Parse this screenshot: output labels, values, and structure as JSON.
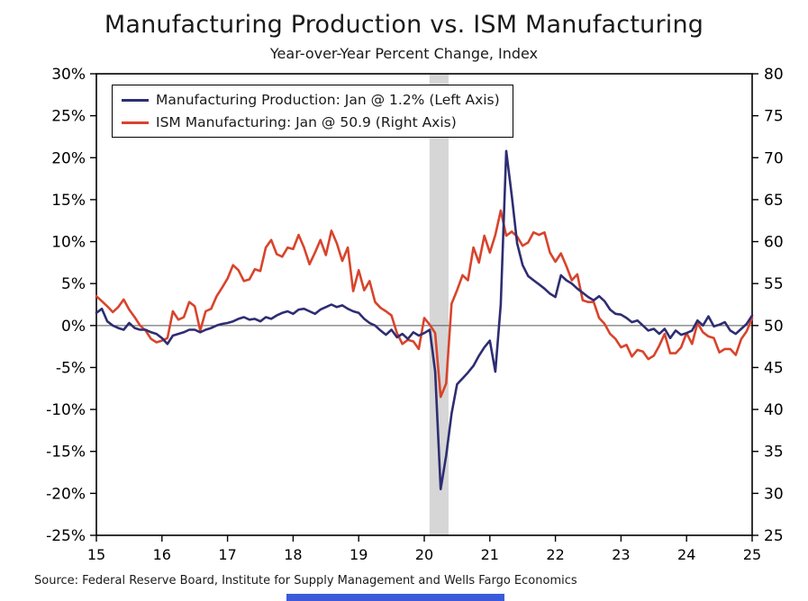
{
  "title": "Manufacturing Production vs. ISM Manufacturing",
  "subtitle": "Year-over-Year Percent Change, Index",
  "source": "Source: Federal Reserve Board, Institute for Supply Management and Wells Fargo Economics",
  "colors": {
    "production_line": "#2e2d72",
    "ism_line": "#d8442c",
    "recession_band": "#d6d6d6",
    "axis": "#000000",
    "zero_line": "#555555",
    "bottom_bar": "#3b5bdb"
  },
  "chart_data": {
    "type": "line",
    "title": "Manufacturing Production vs. ISM Manufacturing",
    "subtitle": "Year-over-Year Percent Change, Index",
    "x_axis": {
      "min": 2015,
      "max": 2025,
      "tick_values": [
        2015,
        2016,
        2017,
        2018,
        2019,
        2020,
        2021,
        2022,
        2023,
        2024,
        2025
      ],
      "tick_labels": [
        "15",
        "16",
        "17",
        "18",
        "19",
        "20",
        "21",
        "22",
        "23",
        "24",
        "25"
      ]
    },
    "left_axis": {
      "min": -25,
      "max": 30,
      "tick_values": [
        30,
        25,
        20,
        15,
        10,
        5,
        0,
        -5,
        -10,
        -15,
        -20,
        -25
      ],
      "tick_labels": [
        "30%",
        "25%",
        "20%",
        "15%",
        "10%",
        "5%",
        "0%",
        "-5%",
        "-10%",
        "-15%",
        "-20%",
        "-25%"
      ]
    },
    "right_axis": {
      "min": 25,
      "max": 80,
      "tick_values": [
        80,
        75,
        70,
        65,
        60,
        55,
        50,
        45,
        40,
        35,
        30,
        25
      ],
      "tick_labels": [
        "80",
        "75",
        "70",
        "65",
        "60",
        "55",
        "50",
        "45",
        "40",
        "35",
        "30",
        "25"
      ]
    },
    "recession_band": {
      "x0": 2020.08,
      "x1": 2020.37
    },
    "frequency": "monthly",
    "start": "2015-01",
    "end": "2025-01",
    "series": [
      {
        "name": "Manufacturing Production: Jan @ 1.2% (Left Axis)",
        "axis": "left",
        "color": "#2e2d72",
        "values": [
          1.5,
          2.0,
          0.5,
          0.0,
          -0.3,
          -0.5,
          0.3,
          -0.3,
          -0.5,
          -0.5,
          -0.8,
          -1.0,
          -1.5,
          -2.2,
          -1.2,
          -1.0,
          -0.8,
          -0.5,
          -0.5,
          -0.8,
          -0.5,
          -0.3,
          0.0,
          0.2,
          0.3,
          0.5,
          0.8,
          1.0,
          0.7,
          0.8,
          0.5,
          1.0,
          0.8,
          1.2,
          1.5,
          1.7,
          1.4,
          1.9,
          2.0,
          1.7,
          1.4,
          1.9,
          2.2,
          2.5,
          2.2,
          2.4,
          2.0,
          1.7,
          1.5,
          0.8,
          0.3,
          0.0,
          -0.6,
          -1.1,
          -0.5,
          -1.4,
          -1.0,
          -1.6,
          -0.8,
          -1.2,
          -0.9,
          -0.5,
          -5.5,
          -19.5,
          -15.5,
          -10.5,
          -7.0,
          -6.3,
          -5.6,
          -4.8,
          -3.6,
          -2.6,
          -1.8,
          -5.5,
          2.5,
          20.8,
          15.5,
          9.8,
          7.2,
          5.9,
          5.4,
          4.9,
          4.4,
          3.8,
          3.4,
          6.0,
          5.4,
          5.0,
          4.4,
          3.9,
          3.4,
          3.0,
          3.5,
          2.9,
          1.9,
          1.4,
          1.3,
          0.9,
          0.4,
          0.6,
          0.0,
          -0.6,
          -0.4,
          -1.0,
          -0.4,
          -1.5,
          -0.6,
          -1.1,
          -0.9,
          -0.6,
          0.6,
          0.0,
          1.1,
          -0.1,
          0.1,
          0.4,
          -0.6,
          -1.0,
          -0.4,
          0.2,
          1.2
        ]
      },
      {
        "name": "ISM Manufacturing: Jan @ 50.9 (Right Axis)",
        "axis": "right",
        "color": "#d8442c",
        "values": [
          53.5,
          52.9,
          52.3,
          51.6,
          52.2,
          53.1,
          51.9,
          51.0,
          50.0,
          49.4,
          48.4,
          48.0,
          48.2,
          48.5,
          51.7,
          50.7,
          51.0,
          52.8,
          52.3,
          49.4,
          51.7,
          52.0,
          53.5,
          54.5,
          55.6,
          57.2,
          56.6,
          55.3,
          55.5,
          56.7,
          56.5,
          59.3,
          60.2,
          58.5,
          58.2,
          59.3,
          59.1,
          60.8,
          59.3,
          57.3,
          58.7,
          60.2,
          58.4,
          61.3,
          59.8,
          57.7,
          59.3,
          54.1,
          56.6,
          54.2,
          55.3,
          52.8,
          52.1,
          51.7,
          51.2,
          49.1,
          47.8,
          48.3,
          48.1,
          47.2,
          50.9,
          50.1,
          49.1,
          41.5,
          43.1,
          52.6,
          54.2,
          56.0,
          55.4,
          59.3,
          57.5,
          60.7,
          58.7,
          60.8,
          63.7,
          60.7,
          61.2,
          60.6,
          59.5,
          59.9,
          61.1,
          60.8,
          61.1,
          58.7,
          57.6,
          58.6,
          57.1,
          55.4,
          56.1,
          53.0,
          52.8,
          52.8,
          50.9,
          50.2,
          49.0,
          48.4,
          47.4,
          47.7,
          46.3,
          47.1,
          46.9,
          46.0,
          46.4,
          47.6,
          49.0,
          46.7,
          46.7,
          47.4,
          49.1,
          47.8,
          50.3,
          49.2,
          48.7,
          48.5,
          46.8,
          47.2,
          47.2,
          46.5,
          48.4,
          49.3,
          50.9
        ]
      }
    ],
    "legend_position": "top-left-inside",
    "grid": false
  }
}
